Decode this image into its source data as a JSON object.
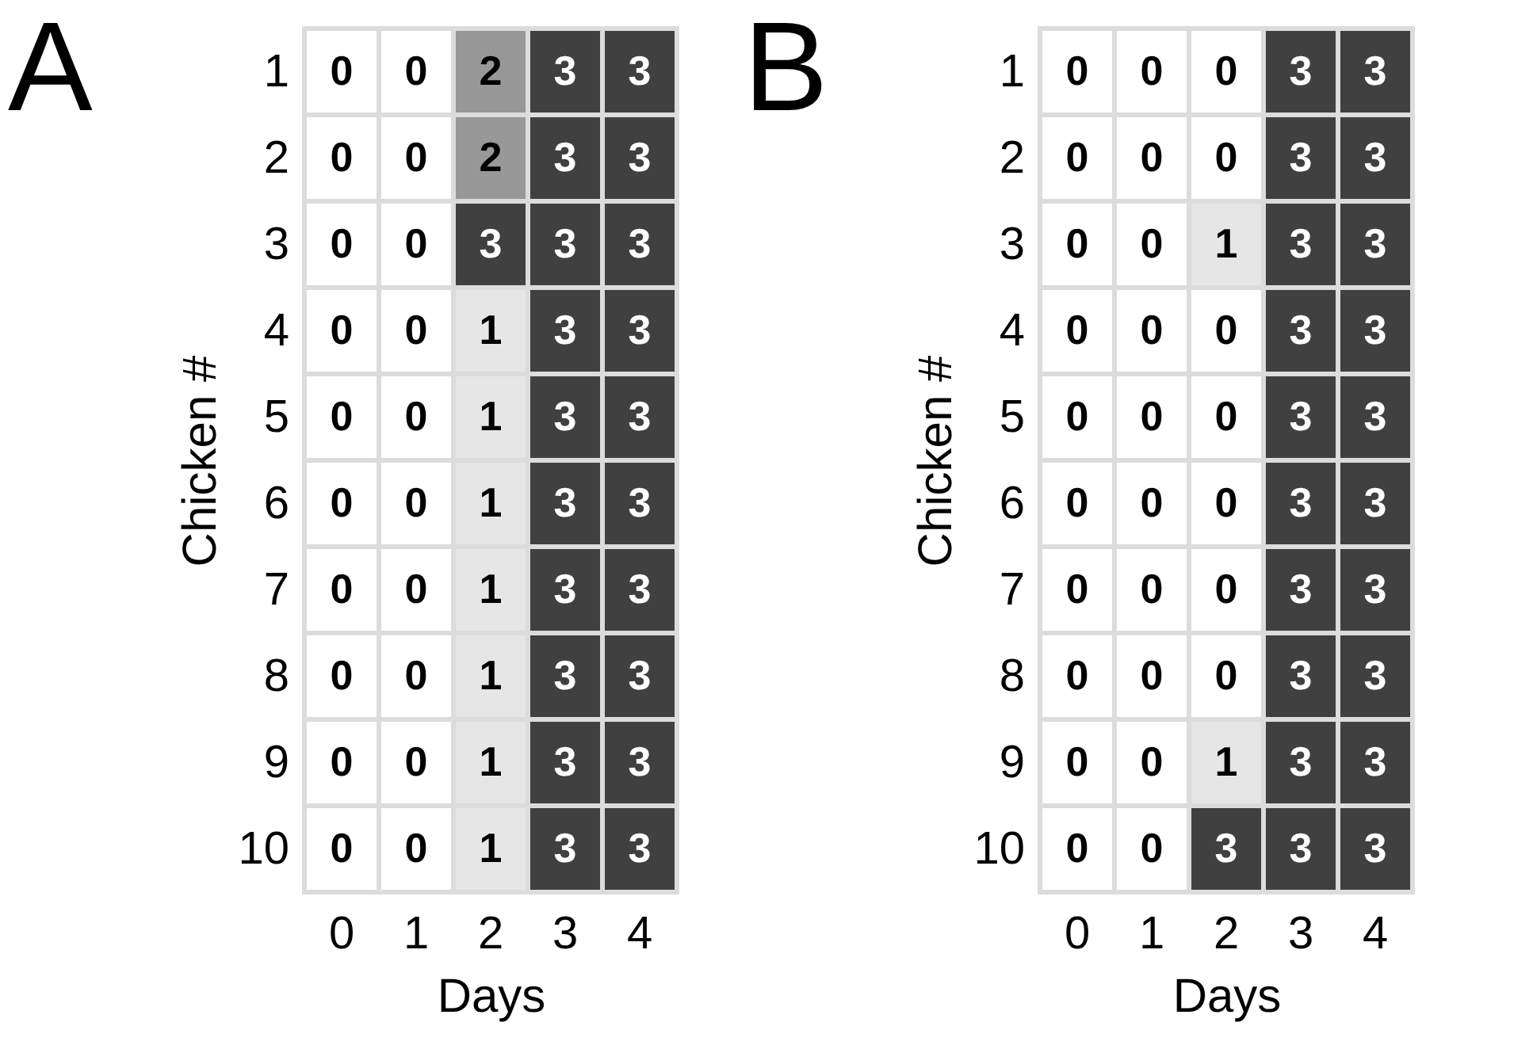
{
  "chart_data": [
    {
      "type": "heatmap",
      "data_labels": true,
      "title": "A",
      "xlabel": "Days",
      "ylabel": "Chicken #",
      "categories": [
        "0",
        "1",
        "2",
        "3",
        "4"
      ],
      "y_categories": [
        "1",
        "2",
        "3",
        "4",
        "5",
        "6",
        "7",
        "8",
        "9",
        "10"
      ],
      "cells": [
        [
          0,
          0,
          2,
          3,
          3
        ],
        [
          0,
          0,
          2,
          3,
          3
        ],
        [
          0,
          0,
          3,
          3,
          3
        ],
        [
          0,
          0,
          1,
          3,
          3
        ],
        [
          0,
          0,
          1,
          3,
          3
        ],
        [
          0,
          0,
          1,
          3,
          3
        ],
        [
          0,
          0,
          1,
          3,
          3
        ],
        [
          0,
          0,
          1,
          3,
          3
        ],
        [
          0,
          0,
          1,
          3,
          3
        ],
        [
          0,
          0,
          1,
          3,
          3
        ]
      ]
    },
    {
      "type": "heatmap",
      "data_labels": true,
      "title": "B",
      "xlabel": "Days",
      "ylabel": "Chicken #",
      "categories": [
        "0",
        "1",
        "2",
        "3",
        "4"
      ],
      "y_categories": [
        "1",
        "2",
        "3",
        "4",
        "5",
        "6",
        "7",
        "8",
        "9",
        "10"
      ],
      "cells": [
        [
          0,
          0,
          0,
          3,
          3
        ],
        [
          0,
          0,
          0,
          3,
          3
        ],
        [
          0,
          0,
          1,
          3,
          3
        ],
        [
          0,
          0,
          0,
          3,
          3
        ],
        [
          0,
          0,
          0,
          3,
          3
        ],
        [
          0,
          0,
          0,
          3,
          3
        ],
        [
          0,
          0,
          0,
          3,
          3
        ],
        [
          0,
          0,
          0,
          3,
          3
        ],
        [
          0,
          0,
          1,
          3,
          3
        ],
        [
          0,
          0,
          3,
          3,
          3
        ]
      ]
    }
  ]
}
